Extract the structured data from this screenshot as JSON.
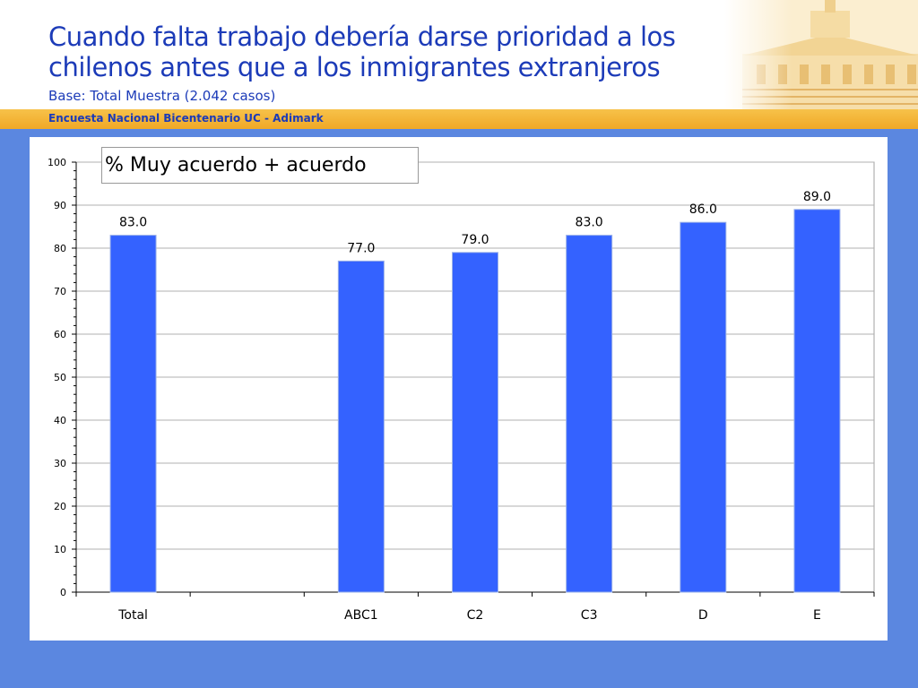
{
  "header": {
    "title_line1": "Cuando falta trabajo debería darse prioridad a los",
    "title_line2": "chilenos antes que a los inmigrantes extranjeros",
    "subtitle": "Base: Total Muestra (2.042 casos)",
    "band_text": "Encuesta Nacional Bicentenario UC - Adimark"
  },
  "colors": {
    "title": "#1c3bb8",
    "band": "#f0a826",
    "background": "#5b87e0",
    "bar": "#3462ff"
  },
  "chart_data": {
    "type": "bar",
    "title": "% Muy acuerdo + acuerdo",
    "categories": [
      "Total",
      "",
      "ABC1",
      "C2",
      "C3",
      "D",
      "E"
    ],
    "values": [
      83.0,
      null,
      77.0,
      79.0,
      83.0,
      86.0,
      89.0
    ],
    "value_labels": [
      "83.0",
      "",
      "77.0",
      "79.0",
      "83.0",
      "86.0",
      "89.0"
    ],
    "y_ticks": [
      "0",
      "10",
      "20",
      "30",
      "40",
      "50",
      "60",
      "70",
      "80",
      "90",
      "100"
    ],
    "ylim": [
      0,
      100
    ],
    "xlabel": "",
    "ylabel": "",
    "grid": true
  }
}
